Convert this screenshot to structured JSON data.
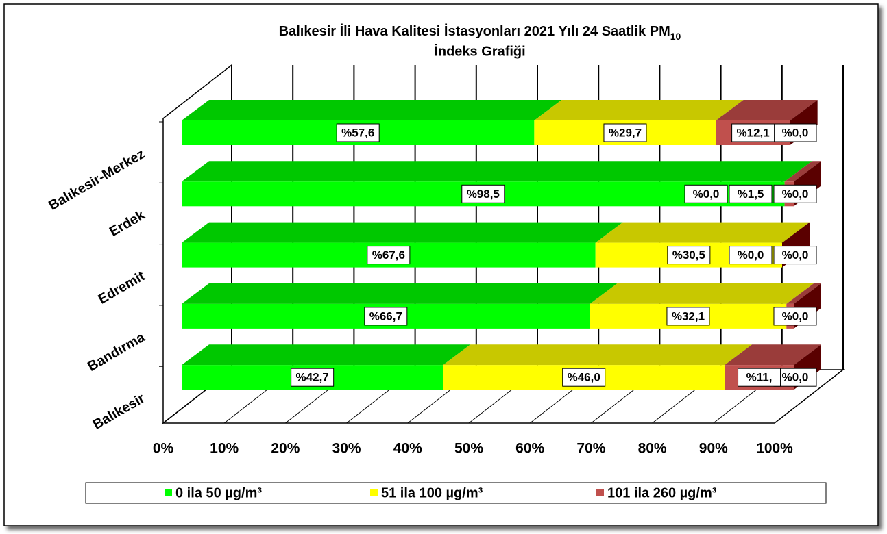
{
  "chart_data": {
    "type": "bar3d-stacked-horizontal",
    "title": [
      "Balıkesir İli Hava Kalitesi İstasyonları 2021 Yılı 24 Saatlik PM",
      "10",
      "İndeks Grafiği"
    ],
    "categories": [
      "Balıkesir-Merkez",
      "Erdek",
      "Edremit",
      "Bandırma",
      "Balıkesir"
    ],
    "series": [
      {
        "name": "0 ila 50 µg/m³",
        "color": "#00ff00",
        "top": "#00c800",
        "values": [
          57.6,
          98.5,
          67.6,
          66.7,
          42.7
        ],
        "value_labels": [
          "%57,6",
          "%98,5",
          "%67,6",
          "%66,7",
          "%42,7"
        ]
      },
      {
        "name": "51 ila 100 µg/m³",
        "color": "#ffff00",
        "top": "#c8c800",
        "values": [
          29.7,
          0.0,
          30.5,
          32.1,
          46.0
        ],
        "value_labels": [
          "%29,7",
          "%0,0",
          "%30,5",
          "%32,1",
          "%46,0"
        ]
      },
      {
        "name": "101 ila 260 µg/m³",
        "color": "#c0504d",
        "top": "#9a3c3a",
        "values": [
          12.1,
          1.5,
          0.0,
          1.2,
          11.3
        ],
        "value_labels": [
          "%12,1",
          "%1,5",
          "%0,0",
          null,
          "%11,"
        ]
      },
      {
        "color": "#8b0000",
        "top": "#5a0000",
        "values": [
          0.0,
          0.0,
          0.0,
          0.0,
          0.0
        ],
        "value_labels": [
          "%0,0",
          "%0,0",
          "%0,0",
          "%0,0",
          "%0,0"
        ]
      }
    ],
    "xlim": [
      0,
      100
    ],
    "xticks": [
      {
        "value": 0,
        "label": "0%"
      },
      {
        "value": 10,
        "label": "10%"
      },
      {
        "value": 20,
        "label": "20%"
      },
      {
        "value": 30,
        "label": "30%"
      },
      {
        "value": 40,
        "label": "40%"
      },
      {
        "value": 50,
        "label": "50%"
      },
      {
        "value": 60,
        "label": "60%"
      },
      {
        "value": 70,
        "label": "70%"
      },
      {
        "value": 80,
        "label": "80%"
      },
      {
        "value": 90,
        "label": "90%"
      },
      {
        "value": 100,
        "label": "100%"
      }
    ],
    "grid": true,
    "legend": "bottom"
  }
}
